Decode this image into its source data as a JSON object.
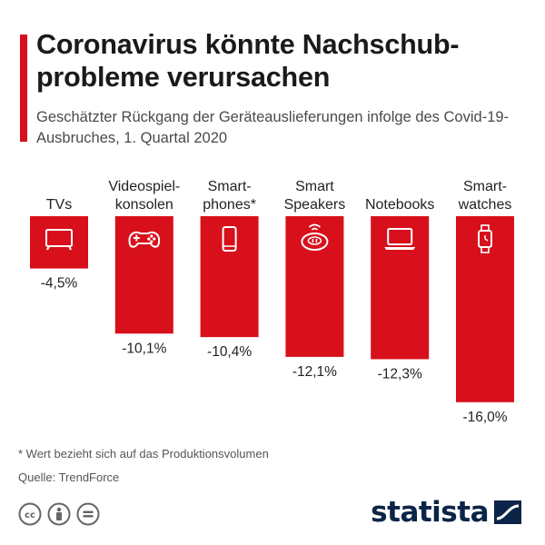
{
  "header": {
    "title": "Coronavirus könnte Nachschub-probleme verursachen",
    "subtitle": "Geschätzter Rückgang der Geräteauslieferungen infolge des Covid-19-Ausbruches, 1. Quartal 2020"
  },
  "chart_data": {
    "type": "bar",
    "categories": [
      [
        "TVs"
      ],
      [
        "Videospiel-",
        "konsolen"
      ],
      [
        "Smart-",
        "phones*"
      ],
      [
        "Smart",
        "Speakers"
      ],
      [
        "Notebooks"
      ],
      [
        "Smart-",
        "watches"
      ]
    ],
    "values": [
      -4.5,
      -10.1,
      -10.4,
      -12.1,
      -12.3,
      -16.0
    ],
    "value_labels": [
      "-4,5%",
      "-10,1%",
      "-10,4%",
      "-12,1%",
      "-12,3%",
      "-16,0%"
    ],
    "icons": [
      "tv-icon",
      "gamepad-icon",
      "smartphone-icon",
      "smart-speaker-icon",
      "laptop-icon",
      "smartwatch-icon"
    ],
    "ylim": [
      -16,
      0
    ],
    "bar_color": "#d7101c",
    "icon_color": "#ffffff"
  },
  "footer": {
    "footnote": "* Wert bezieht sich auf das Produktionsvolumen",
    "source": "Quelle: TrendForce",
    "brand": "statista"
  },
  "colors": {
    "accent": "#d7101c",
    "brand": "#0b2447"
  }
}
